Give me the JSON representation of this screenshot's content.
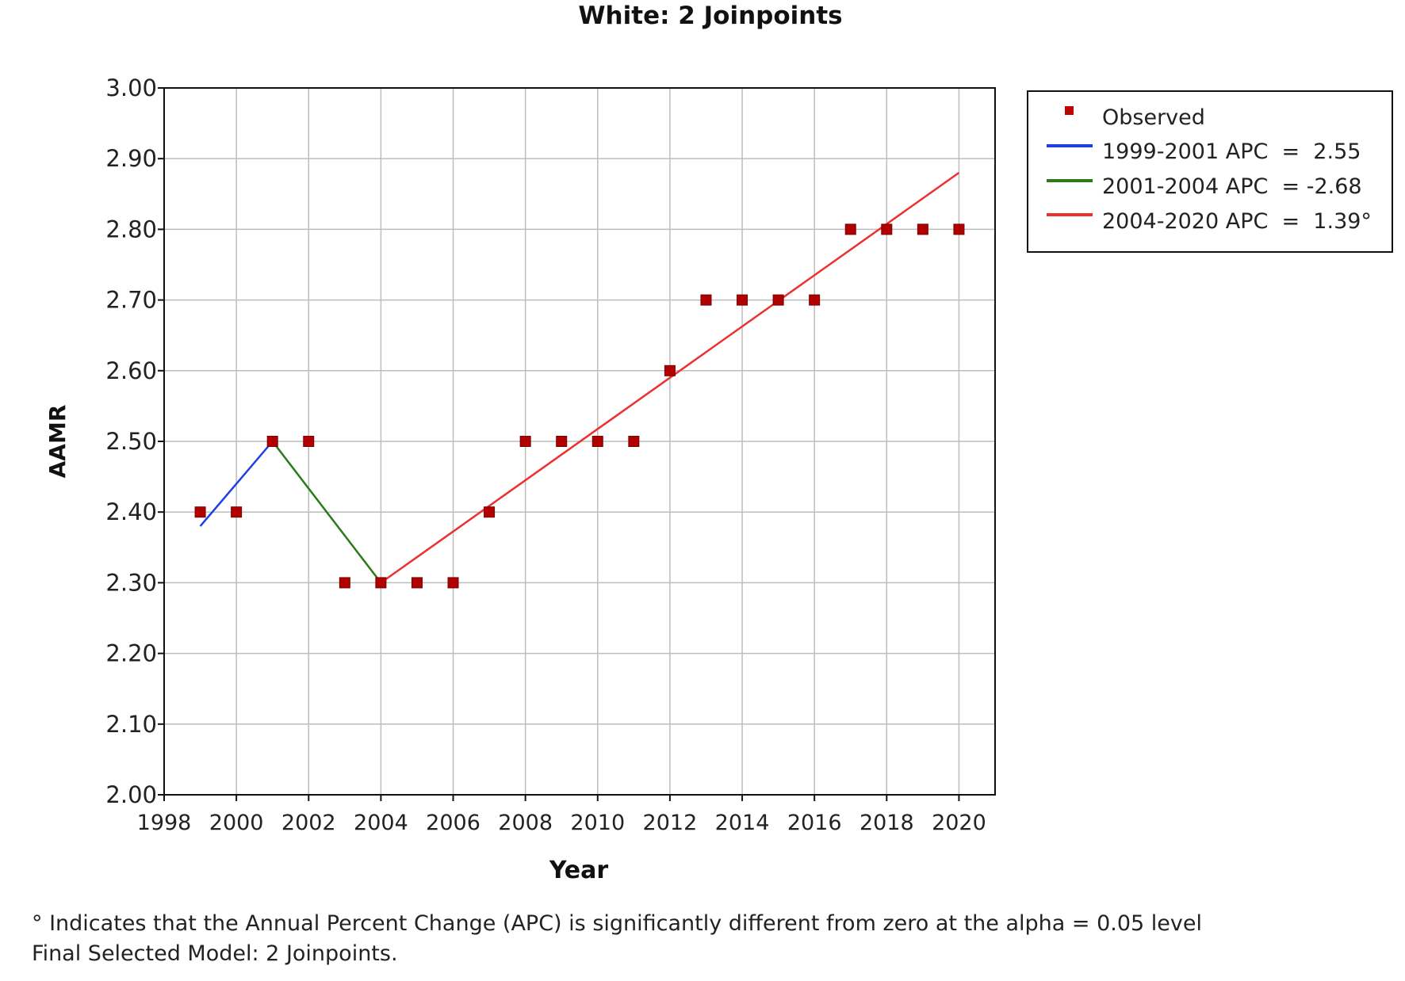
{
  "chart_data": {
    "type": "line",
    "title": "White: 2 Joinpoints",
    "xlabel": "Year",
    "ylabel": "AAMR",
    "xlim": [
      1998,
      2021
    ],
    "ylim": [
      2.0,
      3.0
    ],
    "x_ticks": [
      "1998",
      "2000",
      "2002",
      "2004",
      "2006",
      "2008",
      "2010",
      "2012",
      "2014",
      "2016",
      "2018",
      "2020"
    ],
    "y_ticks": [
      "2.00",
      "2.10",
      "2.20",
      "2.30",
      "2.40",
      "2.50",
      "2.60",
      "2.70",
      "2.80",
      "2.90",
      "3.00"
    ],
    "grid": true,
    "legend_position": "right",
    "observed": {
      "name": "Observed",
      "color": "#b00000",
      "x": [
        1999,
        2000,
        2001,
        2002,
        2003,
        2004,
        2005,
        2006,
        2007,
        2008,
        2009,
        2010,
        2011,
        2012,
        2013,
        2014,
        2015,
        2016,
        2017,
        2018,
        2019,
        2020
      ],
      "y": [
        2.4,
        2.4,
        2.5,
        2.5,
        2.3,
        2.3,
        2.3,
        2.3,
        2.4,
        2.5,
        2.5,
        2.5,
        2.5,
        2.6,
        2.7,
        2.7,
        2.7,
        2.7,
        2.8,
        2.8,
        2.8,
        2.8
      ]
    },
    "series": [
      {
        "name": "1999-2001 APC  =  2.55",
        "color": "#1f3fe6",
        "x": [
          1999,
          2001
        ],
        "y": [
          2.38,
          2.5
        ]
      },
      {
        "name": "2001-2004 APC  = -2.68",
        "color": "#2a7a1a",
        "x": [
          2001,
          2004
        ],
        "y": [
          2.5,
          2.3
        ]
      },
      {
        "name": "2004-2020 APC  =  1.39°",
        "color": "#ee3030",
        "x": [
          2004,
          2020
        ],
        "y": [
          2.3,
          2.88
        ]
      }
    ]
  },
  "footnotes": [
    "° Indicates that the Annual Percent Change (APC) is significantly different from zero at the alpha = 0.05 level",
    "Final Selected Model: 2 Joinpoints."
  ]
}
